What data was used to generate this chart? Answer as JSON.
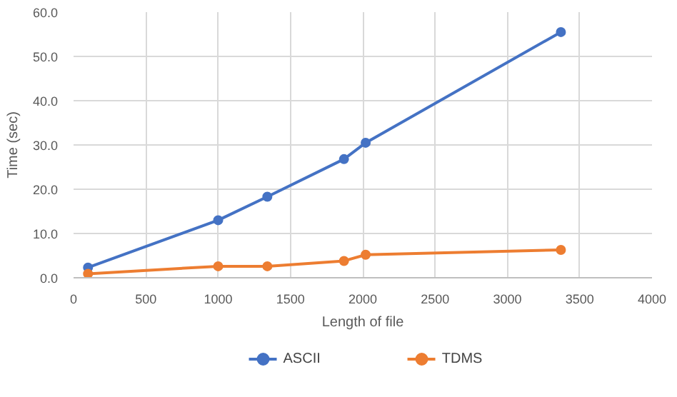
{
  "chart_data": {
    "type": "line",
    "xlabel": "Length of file",
    "ylabel": "Time (sec)",
    "xlim": [
      0,
      4000
    ],
    "xticks": [
      0,
      500,
      1000,
      1500,
      2000,
      2500,
      3000,
      3500,
      4000
    ],
    "ylim": [
      0,
      60
    ],
    "yticks": [
      {
        "value": 0,
        "label": "0.0"
      },
      {
        "value": 10,
        "label": "10.0"
      },
      {
        "value": 20,
        "label": "20.0"
      },
      {
        "value": 30,
        "label": "30.0"
      },
      {
        "value": 40,
        "label": "40.0"
      },
      {
        "value": 50,
        "label": "50.0"
      },
      {
        "value": 60,
        "label": "60.0"
      }
    ],
    "x": [
      100,
      1000,
      1340,
      1870,
      2020,
      3370
    ],
    "series": [
      {
        "name": "ASCII",
        "color": "#4472c4",
        "values": [
          2.3,
          13,
          18.3,
          26.8,
          30.5,
          55.5
        ]
      },
      {
        "name": "TDMS",
        "color": "#ed7d31",
        "values": [
          0.9,
          2.6,
          2.6,
          3.8,
          5.2,
          6.3
        ]
      }
    ],
    "grid": true,
    "legend": "bottom",
    "marker": "circle",
    "line_style": "solid"
  }
}
